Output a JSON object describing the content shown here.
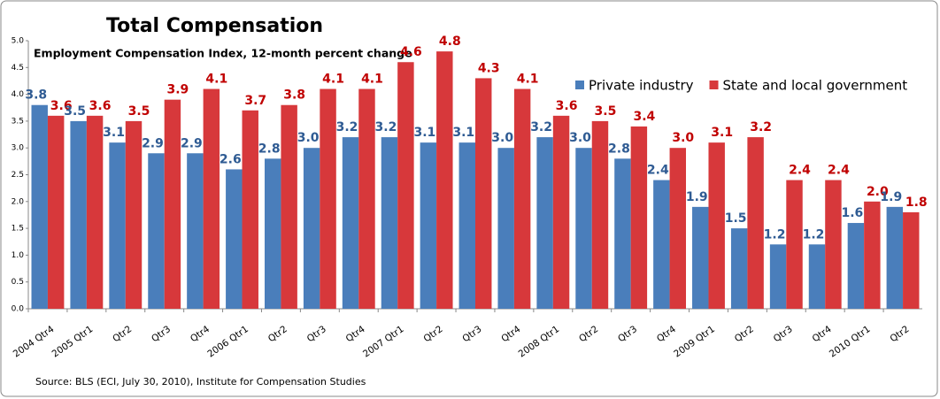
{
  "chart_data": {
    "type": "bar",
    "title": "Total Compensation",
    "subtitle": "Employment Compensation Index, 12-month percent change",
    "source": "Source: BLS (ECI, July 30, 2010), Institute for Compensation Studies",
    "categories": [
      "2004 Qtr4",
      "2005 Qtr1",
      "Qtr2",
      "Qtr3",
      "Qtr4",
      "2006 Qtr1",
      "Qtr2",
      "Qtr3",
      "Qtr4",
      "2007 Qtr1",
      "Qtr2",
      "Qtr3",
      "Qtr4",
      "2008 Qtr1",
      "Qtr2",
      "Qtr3",
      "Qtr4",
      "2009 Qtr1",
      "Qtr2",
      "Qtr3",
      "Qtr4",
      "2010 Qtr1",
      "Qtr2"
    ],
    "series": [
      {
        "name": "Private industry",
        "color": "#4a7ebb",
        "label_color": "#2f5b93",
        "values": [
          3.8,
          3.5,
          3.1,
          2.9,
          2.9,
          2.6,
          2.8,
          3.0,
          3.2,
          3.2,
          3.1,
          3.1,
          3.0,
          3.2,
          3.0,
          2.8,
          2.4,
          1.9,
          1.5,
          1.2,
          1.2,
          1.6,
          1.9
        ],
        "value_labels": [
          "3.8",
          "3.5",
          "3.1",
          "2.9",
          "2.9",
          "2.6",
          "2.8",
          "3.0",
          "3.2",
          "3.2",
          "3.1",
          "3.1",
          "3.0",
          "3.2",
          "3.0",
          "2.8",
          "2.4",
          "1.9",
          "1.5",
          "1.2",
          "1.2",
          "1.6",
          "1.9"
        ]
      },
      {
        "name": "State and local government",
        "color": "#d7383b",
        "label_color": "#c00000",
        "values": [
          3.6,
          3.6,
          3.5,
          3.9,
          4.1,
          3.7,
          3.8,
          4.1,
          4.1,
          4.6,
          4.8,
          4.3,
          4.1,
          3.6,
          3.5,
          3.4,
          3.0,
          3.1,
          3.2,
          2.4,
          2.4,
          2.0,
          1.8
        ],
        "value_labels": [
          "3.6",
          "3.6",
          "3.5",
          "3.9",
          "4.1",
          "3.7",
          "3.8",
          "4.1",
          "4.1",
          "4.6",
          "4.8",
          "4.3",
          "4.1",
          "3.6",
          "3.5",
          "3.4",
          "3.0",
          "3.1",
          "3.2",
          "2.4",
          "2.4",
          "2.0",
          "1.8"
        ]
      }
    ],
    "ylim": [
      0,
      5
    ],
    "yticks": [
      {
        "value": 0,
        "label": "0.0"
      },
      {
        "value": 0.5,
        "label": "0.5"
      },
      {
        "value": 1,
        "label": "1.0"
      },
      {
        "value": 1.5,
        "label": "1.5"
      },
      {
        "value": 2,
        "label": "2.0"
      },
      {
        "value": 2.5,
        "label": "2.5"
      },
      {
        "value": 3,
        "label": "3.0"
      },
      {
        "value": 3.5,
        "label": "3.5"
      },
      {
        "value": 4,
        "label": "4.0"
      },
      {
        "value": 4.5,
        "label": "4.5"
      },
      {
        "value": 5,
        "label": "5.0"
      }
    ],
    "grid": false,
    "legend": "top-right"
  }
}
